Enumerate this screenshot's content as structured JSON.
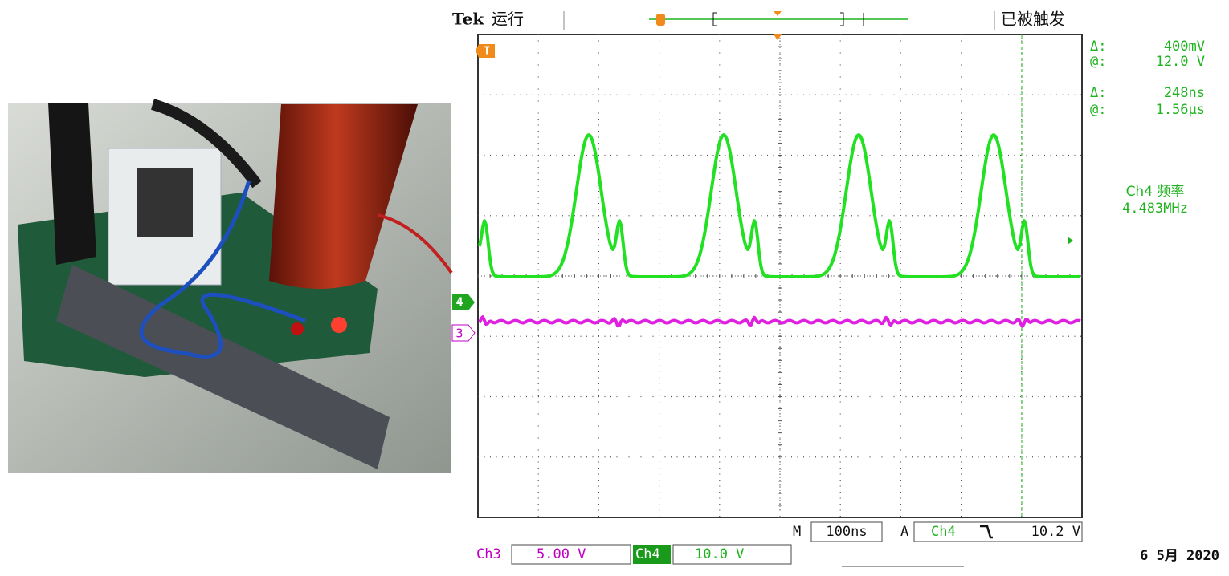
{
  "header": {
    "brand": "Tek",
    "status": "运行",
    "trigger_state": "已被触发"
  },
  "cursor_readouts": [
    {
      "label": "Δ:",
      "value": "400mV"
    },
    {
      "label": "@:",
      "value": "12.0 V"
    },
    {
      "label": "Δ:",
      "value": "248ns"
    },
    {
      "label": "@:",
      "value": "1.56µs"
    }
  ],
  "frequency": {
    "label": "Ch4 频率",
    "value": "4.483MHz"
  },
  "markers": {
    "trigger": "T",
    "ch4": "4",
    "ch3": "3"
  },
  "timebase": {
    "label": "M",
    "value": "100ns"
  },
  "trigger": {
    "label": "A",
    "source": "Ch4",
    "level": "10.2 V"
  },
  "channels": [
    {
      "name": "Ch3",
      "scale": "5.00 V"
    },
    {
      "name": "Ch4",
      "scale": "10.0 V"
    }
  ],
  "date": "6 5月 2020"
}
